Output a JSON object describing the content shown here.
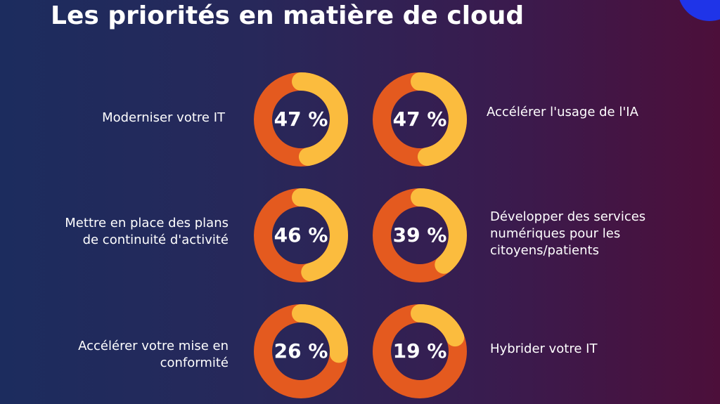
{
  "colors": {
    "ring_base": "#e45a1f",
    "ring_highlight": "#fbbc3e",
    "ring_track": "#f39a2b",
    "title_color": "#ffffff",
    "accent_blue": "#1f34e8"
  },
  "title": "Les priorités en matière de cloud",
  "chart_data": {
    "type": "pie",
    "title": "Les priorités en matière de cloud",
    "unit": "%",
    "items": [
      {
        "label": "Moderniser votre IT",
        "value": 47,
        "value_label": "47 %"
      },
      {
        "label": "Accélérer l'usage de l'IA",
        "value": 47,
        "value_label": "47 %"
      },
      {
        "label": "Mettre en place des plans\nde continuité d'activité",
        "value": 46,
        "value_label": "46 %"
      },
      {
        "label": "Développer des services\nnumériques pour les\ncitoyens/patients",
        "value": 39,
        "value_label": "39 %"
      },
      {
        "label": "Accélérer votre mise en\nconformité",
        "value": 26,
        "value_label": "26 %"
      },
      {
        "label": "Hybrider votre IT",
        "value": 19,
        "value_label": "19 %"
      }
    ]
  }
}
